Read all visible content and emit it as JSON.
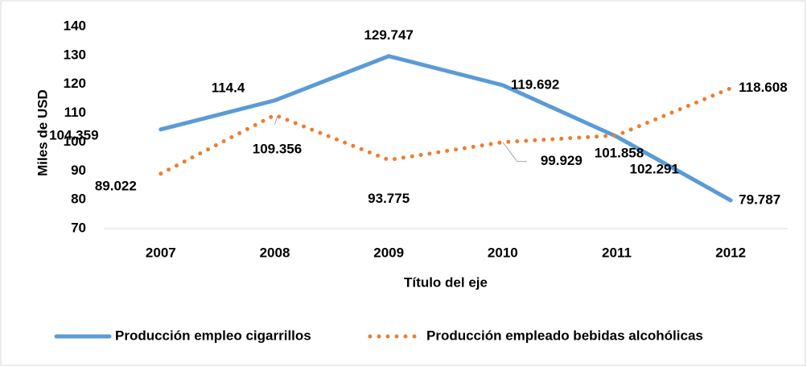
{
  "chart_data": {
    "type": "line",
    "categories": [
      "2007",
      "2008",
      "2009",
      "2010",
      "2011",
      "2012"
    ],
    "series": [
      {
        "name": "Producción empleo cigarrillos",
        "color": "#5b9bd5",
        "values": [
          104.359,
          114.4,
          129.747,
          119.692,
          101.858,
          79.787
        ]
      },
      {
        "name": "Producción empleado bebidas alcohólicas",
        "color": "#ed7d31",
        "values": [
          89.022,
          109.356,
          93.775,
          99.929,
          102.291,
          118.608
        ]
      }
    ],
    "ylim": [
      70,
      140
    ],
    "yticks": [
      70,
      80,
      90,
      100,
      110,
      120,
      130,
      140
    ],
    "y_label": "Miles de USD",
    "x_label": "Título del eje",
    "legend": "bottom"
  }
}
